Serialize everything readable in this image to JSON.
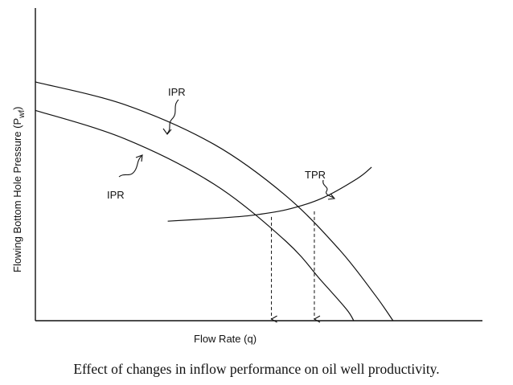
{
  "chart_data": {
    "type": "line",
    "xlabel": "Flow Rate (q)",
    "ylabel": {
      "main": "Flowing Bottom Hole Pressure (P",
      "sub": "wf",
      "close": ")"
    },
    "series": [
      {
        "name": "IPR",
        "role": "upper",
        "x": [
          0,
          0.25,
          0.5,
          0.7,
          0.85,
          0.95,
          1.0
        ],
        "y": [
          0.84,
          0.76,
          0.62,
          0.44,
          0.25,
          0.09,
          0.0
        ]
      },
      {
        "name": "IPR",
        "role": "lower",
        "x": [
          0,
          0.25,
          0.5,
          0.7,
          0.8,
          0.87,
          0.89
        ],
        "y": [
          0.74,
          0.64,
          0.48,
          0.28,
          0.14,
          0.04,
          0.0
        ]
      },
      {
        "name": "TPR",
        "role": "tubing",
        "x": [
          0.37,
          0.5,
          0.6,
          0.7,
          0.8,
          0.9,
          0.94
        ],
        "y": [
          0.35,
          0.36,
          0.37,
          0.39,
          0.43,
          0.5,
          0.54
        ]
      }
    ],
    "operating_points": [
      {
        "x": 0.66,
        "y": 0.365
      },
      {
        "x": 0.78,
        "y": 0.385
      }
    ],
    "annotations": {
      "ipr_upper": "IPR",
      "ipr_lower": "IPR",
      "tpr": "TPR"
    },
    "xlim": [
      0,
      1.25
    ],
    "ylim": [
      0,
      1.1
    ],
    "grid": false,
    "legend": "none"
  },
  "caption": "Effect of changes in inflow performance on oil well productivity."
}
